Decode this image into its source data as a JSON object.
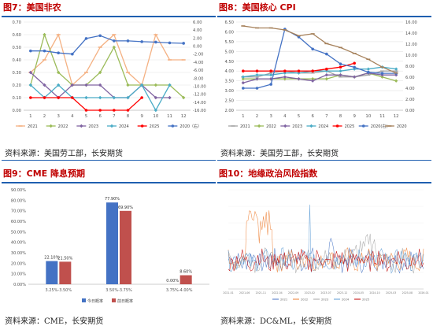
{
  "panels": [
    {
      "title": "图7：美国非农",
      "source": "资料来源：美国劳工部，长安期货"
    },
    {
      "title": "图8：美国核心 CPI",
      "source": "资料来源：美国劳工部，长安期货"
    },
    {
      "title": "图9：CME 降息预期",
      "source": "资料来源：CME，长安期货"
    },
    {
      "title": "图10：地缘政治风险指数",
      "source": "资料来源：DC&ML，长安期货"
    }
  ],
  "colors": {
    "title": "#c00000",
    "rule": "#1f5fb0"
  },
  "chart_data": [
    {
      "type": "line",
      "id": "nfp",
      "categories": [
        "1",
        "2",
        "3",
        "4",
        "5",
        "6",
        "7",
        "8",
        "9",
        "10",
        "11",
        "12"
      ],
      "ylim": [
        0,
        0.7
      ],
      "yticks": [
        "0.00",
        "0.10",
        "0.20",
        "0.30",
        "0.40",
        "0.50",
        "0.60",
        "0.70"
      ],
      "y2lim": [
        -16,
        6
      ],
      "y2ticks": [
        "6.00",
        "4.00",
        "2.00",
        "0.00",
        "-2.00",
        "-4.00",
        "-6.00",
        "-8.00",
        "-10.00",
        "-12.00",
        "-14.00",
        "-16.00"
      ],
      "series": [
        {
          "name": "2021",
          "color": "#f4b183",
          "marker": "dash",
          "values": [
            0.3,
            0.4,
            0.6,
            0.2,
            0.3,
            0.5,
            0.6,
            0.3,
            0.2,
            0.6,
            0.4,
            0.4
          ]
        },
        {
          "name": "2022",
          "color": "#9bbb59",
          "marker": "diamond",
          "values": [
            0.2,
            0.6,
            0.3,
            0.2,
            0.2,
            0.3,
            0.5,
            0.2,
            0.2,
            0.2,
            0.2,
            0.1
          ]
        },
        {
          "name": "2023",
          "color": "#8064a2",
          "marker": "diamond",
          "values": [
            0.3,
            0.2,
            0.1,
            0.2,
            0.2,
            0.2,
            0.1,
            0.1,
            0.2,
            0.1,
            0.1,
            null
          ]
        },
        {
          "name": "2024",
          "color": "#4bacc6",
          "marker": "diamond",
          "values": [
            0.2,
            0.1,
            0.2,
            0.1,
            0.1,
            0.1,
            0.1,
            0.1,
            0.2,
            0.0,
            0.2,
            null
          ]
        },
        {
          "name": "2025",
          "color": "#ff0000",
          "marker": "circle",
          "values": [
            0.1,
            0.1,
            0.1,
            0.1,
            0.0,
            0.0,
            0.0,
            0.0,
            0.1,
            null,
            null,
            null
          ]
        },
        {
          "name": "2020（右）",
          "color": "#4472c4",
          "marker": "circle",
          "axis": "right",
          "values": [
            -1.2,
            -1.2,
            -1.7,
            -2.0,
            1.9,
            2.6,
            1.3,
            1.3,
            1.1,
            1.0,
            0.8,
            0.7
          ]
        }
      ]
    },
    {
      "type": "line",
      "id": "cpi",
      "categories": [
        "1",
        "2",
        "3",
        "4",
        "5",
        "6",
        "7",
        "8",
        "9",
        "10",
        "11",
        "12"
      ],
      "ylim": [
        2.0,
        6.5
      ],
      "yticks": [
        "2.00",
        "2.50",
        "3.00",
        "3.50",
        "4.00",
        "4.50",
        "5.00",
        "5.50",
        "6.00",
        "6.50"
      ],
      "y2lim": [
        0,
        16
      ],
      "y2ticks": [
        "16.00",
        "14.00",
        "12.00",
        "10.00",
        "8.00",
        "6.00",
        "4.00",
        "2.00",
        "0.00"
      ],
      "series": [
        {
          "name": "2021",
          "color": "#a5a5a5",
          "marker": "dash",
          "values": [
            3.7,
            3.7,
            3.9,
            4.0,
            3.9,
            3.9,
            4.0,
            3.7,
            3.7,
            3.8,
            4.0,
            4.0
          ]
        },
        {
          "name": "2022",
          "color": "#9bbb59",
          "marker": "diamond",
          "values": [
            3.6,
            3.6,
            3.6,
            3.6,
            3.6,
            3.6,
            3.6,
            3.8,
            3.7,
            3.9,
            3.7,
            3.5
          ]
        },
        {
          "name": "2023",
          "color": "#8064a2",
          "marker": "diamond",
          "values": [
            3.4,
            3.6,
            3.6,
            3.7,
            3.6,
            3.5,
            3.8,
            3.8,
            3.7,
            3.9,
            3.8,
            3.8
          ]
        },
        {
          "name": "2024",
          "color": "#4bacc6",
          "marker": "diamond",
          "values": [
            3.7,
            3.8,
            3.8,
            3.9,
            3.9,
            4.0,
            4.0,
            4.0,
            4.1,
            4.1,
            4.2,
            4.1
          ]
        },
        {
          "name": "2025",
          "color": "#ff0000",
          "marker": "circle",
          "values": [
            4.0,
            4.0,
            4.0,
            4.0,
            4.0,
            4.0,
            4.1,
            4.2,
            4.4,
            null,
            null,
            null
          ]
        },
        {
          "name": "2020(右)",
          "color": "#4472c4",
          "marker": "circle",
          "axis": "right",
          "values": [
            4.0,
            4.0,
            4.7,
            14.7,
            13.3,
            11.1,
            10.2,
            8.4,
            7.8,
            6.9,
            6.7,
            6.7
          ]
        },
        {
          "name": "2020",
          "color": "#a5805a",
          "marker": "dash",
          "values": [
            6.3,
            6.2,
            6.2,
            6.1,
            5.8,
            5.9,
            5.4,
            5.2,
            4.9,
            4.6,
            4.2,
            3.9
          ]
        }
      ]
    },
    {
      "type": "bar",
      "id": "cme",
      "categories": [
        "3.25%-3.50%",
        "3.50%-3.75%",
        "3.75%-4.00%"
      ],
      "ylim": [
        0,
        90
      ],
      "yticks": [
        "0.00%",
        "10.00%",
        "20.00%",
        "30.00%",
        "40.00%",
        "50.00%",
        "60.00%",
        "70.00%",
        "80.00%",
        "90.00%"
      ],
      "series": [
        {
          "name": "今日概率",
          "color": "#4472c4",
          "values": [
            22.1,
            77.9,
            0.0
          ],
          "labels": [
            "22.10%",
            "77.90%",
            "0.00%"
          ]
        },
        {
          "name": "前日概率",
          "color": "#c0504d",
          "values": [
            21.5,
            69.9,
            8.6
          ],
          "labels": [
            "21.50%",
            "69.90%",
            "8.60%"
          ]
        }
      ]
    },
    {
      "type": "line",
      "id": "gpr",
      "xticks": [
        "2021-01",
        "2021-06",
        "2021-11",
        "2022-04",
        "2022-09",
        "2023-02",
        "2023-07",
        "2023-12",
        "2024-05",
        "2024-10",
        "2025-03",
        "2025-08",
        "2026-01"
      ],
      "ylim": [
        0,
        600
      ],
      "legend": [
        "2021",
        "2022",
        "2023",
        "2024",
        "2025"
      ],
      "series_colors": [
        "#4472c4",
        "#ed7d31",
        "#a5a5a5",
        "#5b9bd5",
        "#c00000"
      ]
    }
  ]
}
